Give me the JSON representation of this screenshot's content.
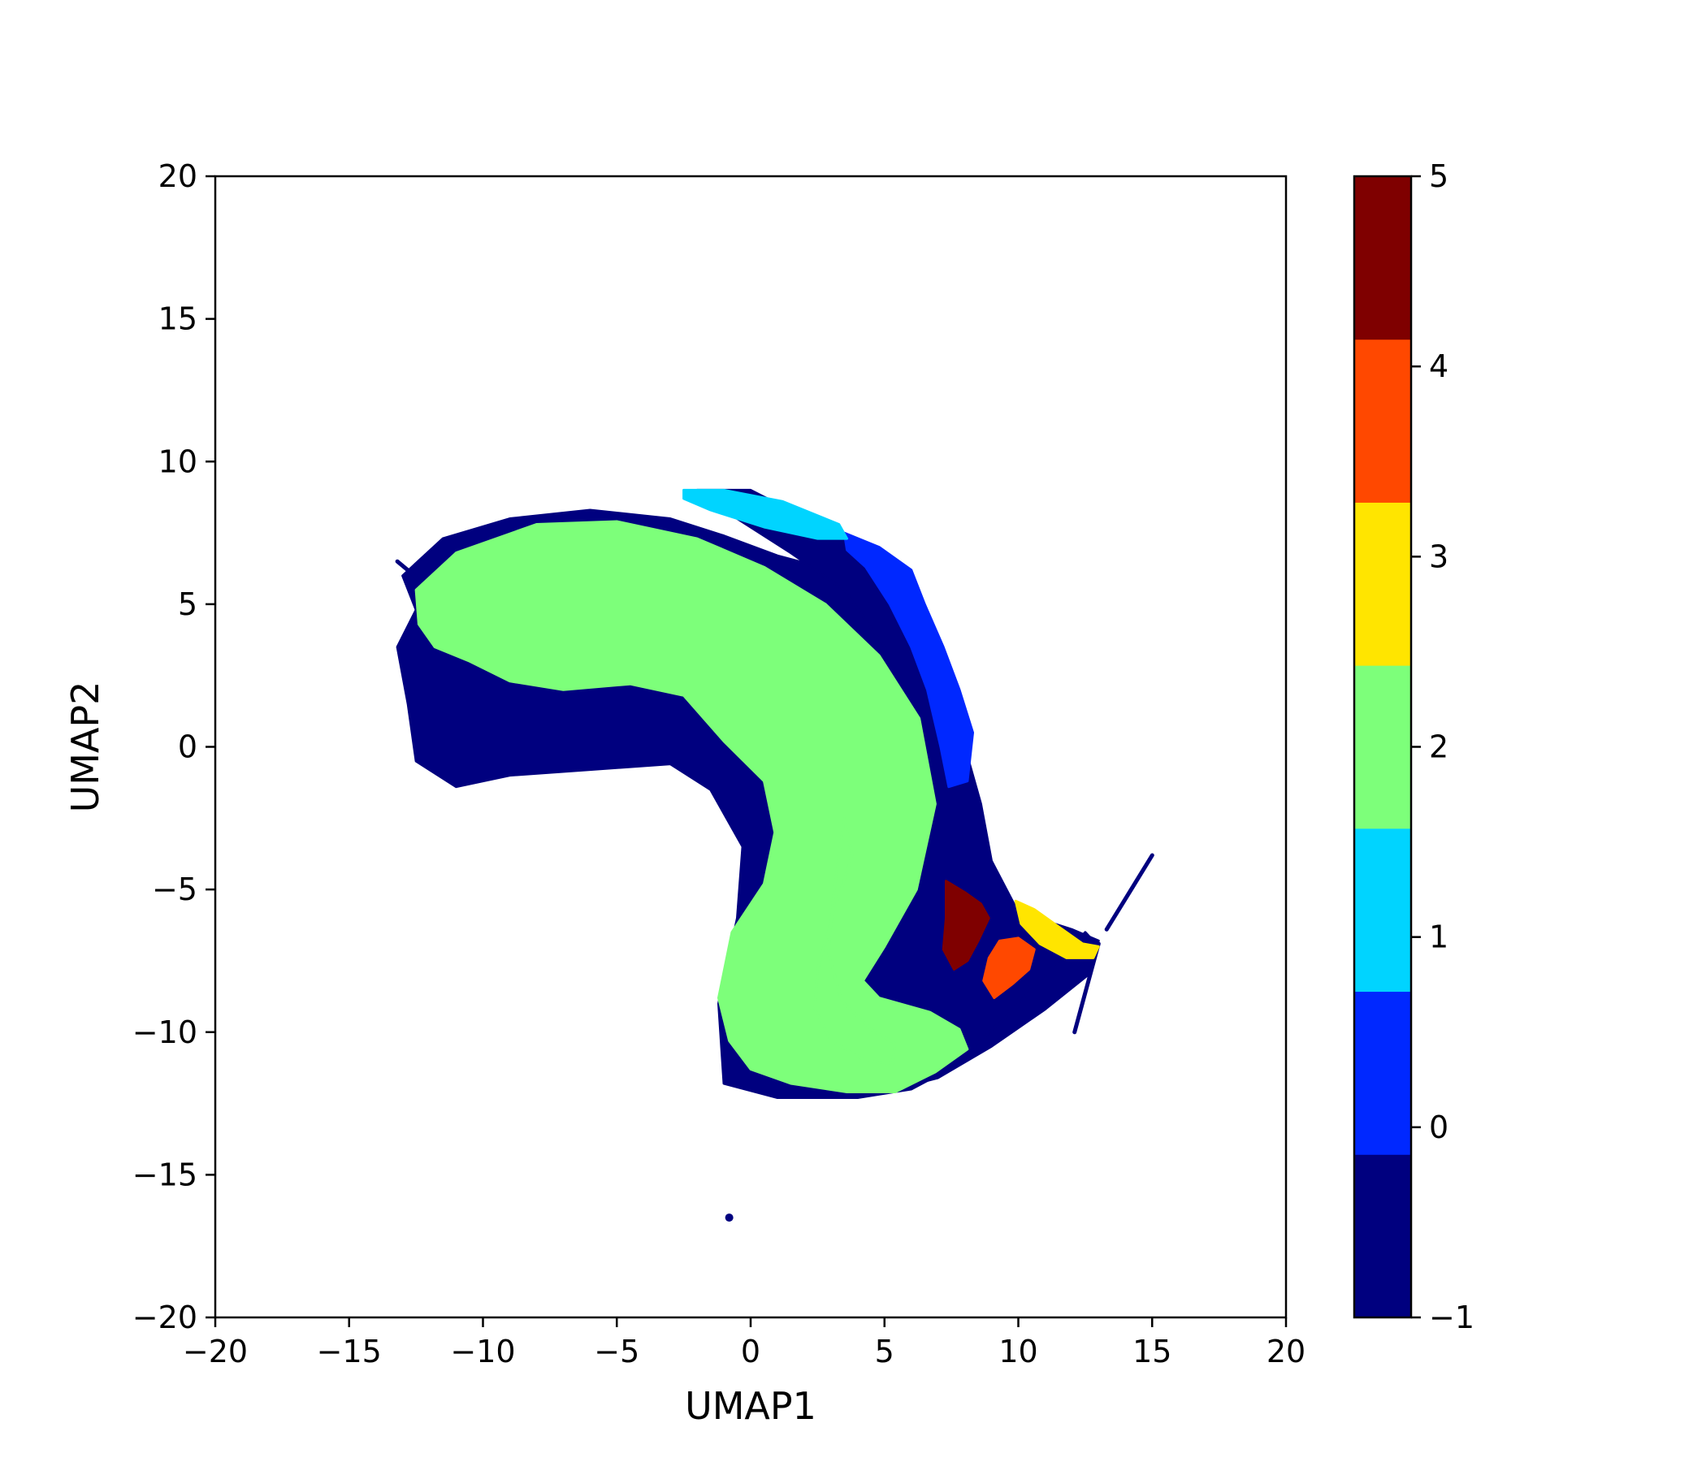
{
  "chart_data": {
    "type": "scatter",
    "title": "",
    "xlabel": "UMAP1",
    "ylabel": "UMAP2",
    "xlim": [
      -20,
      20
    ],
    "ylim": [
      -20,
      20
    ],
    "x_ticks": [
      -20,
      -15,
      -10,
      -5,
      0,
      5,
      10,
      15,
      20
    ],
    "y_ticks": [
      -20,
      -15,
      -10,
      -5,
      0,
      5,
      10,
      15,
      20
    ],
    "x_tick_labels": [
      "−20",
      "−15",
      "−10",
      "−5",
      "0",
      "5",
      "10",
      "15",
      "20"
    ],
    "y_tick_labels": [
      "−20",
      "−15",
      "−10",
      "−5",
      "0",
      "5",
      "10",
      "15",
      "20"
    ],
    "grid": false,
    "colorbar": {
      "colormap": "jet",
      "range": [
        -1,
        5
      ],
      "ticks": [
        -1,
        0,
        1,
        2,
        3,
        4,
        5
      ],
      "tick_labels": [
        "−1",
        "0",
        "1",
        "2",
        "3",
        "4",
        "5"
      ],
      "bins": [
        {
          "cluster": -1,
          "color": "#00007f"
        },
        {
          "cluster": 0,
          "color": "#0028ff"
        },
        {
          "cluster": 1,
          "color": "#00d4ff"
        },
        {
          "cluster": 2,
          "color": "#7dff7a"
        },
        {
          "cluster": 3,
          "color": "#ffe500"
        },
        {
          "cluster": 4,
          "color": "#ff4800"
        },
        {
          "cluster": 5,
          "color": "#7f0000"
        }
      ]
    },
    "series": [
      {
        "cluster": -1,
        "color": "#00007f",
        "regions": [
          {
            "shape": "polygon",
            "points": [
              [
                -13,
                6
              ],
              [
                -11.5,
                7.3
              ],
              [
                -9,
                8
              ],
              [
                -6,
                8.3
              ],
              [
                -3,
                8
              ],
              [
                -1,
                7.4
              ],
              [
                1,
                6.7
              ],
              [
                3,
                6.2
              ],
              [
                5.5,
                5.5
              ],
              [
                7,
                3
              ],
              [
                8,
                0
              ],
              [
                8.6,
                -2
              ],
              [
                9,
                -4
              ],
              [
                10,
                -5.8
              ],
              [
                12,
                -6.4
              ],
              [
                13,
                -6.8
              ],
              [
                12.5,
                -7.8
              ],
              [
                10.5,
                -8.8
              ],
              [
                9,
                -10
              ],
              [
                8,
                -11
              ],
              [
                6,
                -12
              ],
              [
                4,
                -12.3
              ],
              [
                1,
                -12.3
              ],
              [
                -1,
                -11.8
              ],
              [
                -1.2,
                -9
              ],
              [
                -0.5,
                -6
              ],
              [
                -0.3,
                -3.5
              ],
              [
                -1.5,
                -1.5
              ],
              [
                -3,
                -0.6
              ],
              [
                -6,
                -0.8
              ],
              [
                -9,
                -1
              ],
              [
                -11,
                -1.4
              ],
              [
                -12.5,
                -0.5
              ],
              [
                -12.8,
                1.5
              ],
              [
                -13.2,
                3.5
              ],
              [
                -12.5,
                4.8
              ]
            ]
          },
          {
            "shape": "polygon",
            "points": [
              [
                -2,
                9
              ],
              [
                0,
                9
              ],
              [
                2.5,
                7.8
              ],
              [
                5.8,
                6.2
              ],
              [
                6.8,
                4
              ],
              [
                7.8,
                1
              ],
              [
                8,
                -1.2
              ],
              [
                7.2,
                -1.2
              ],
              [
                6,
                1
              ],
              [
                5,
                3.5
              ],
              [
                3.5,
                5.5
              ],
              [
                1.5,
                6.8
              ],
              [
                -0.5,
                8
              ]
            ]
          },
          {
            "shape": "polygon",
            "points": [
              [
                1.5,
                -8.5
              ],
              [
                2.5,
                -9.5
              ],
              [
                4,
                -10.5
              ],
              [
                6,
                -11.2
              ],
              [
                8,
                -10.8
              ],
              [
                9.5,
                -9.5
              ],
              [
                10.5,
                -8.5
              ],
              [
                11.5,
                -7.5
              ],
              [
                12.5,
                -6.5
              ],
              [
                13,
                -7
              ],
              [
                12.6,
                -8
              ],
              [
                11,
                -9.2
              ],
              [
                9,
                -10.5
              ],
              [
                7,
                -11.6
              ],
              [
                5,
                -12.1
              ],
              [
                3,
                -11.8
              ],
              [
                1.3,
                -10.2
              ]
            ]
          },
          {
            "shape": "line",
            "points": [
              [
                -13.2,
                6.5
              ],
              [
                -12.3,
                5.8
              ]
            ]
          },
          {
            "shape": "line",
            "points": [
              [
                13.3,
                -6.4
              ],
              [
                15,
                -3.8
              ]
            ]
          },
          {
            "shape": "line",
            "points": [
              [
                13,
                -6.9
              ],
              [
                12.1,
                -10
              ]
            ]
          },
          {
            "shape": "dot",
            "points": [
              [
                -0.8,
                -16.5
              ]
            ]
          }
        ]
      },
      {
        "cluster": 0,
        "color": "#0028ff",
        "regions": [
          {
            "shape": "polygon",
            "points": [
              [
                3.5,
                7.5
              ],
              [
                4.8,
                7
              ],
              [
                6,
                6.2
              ],
              [
                6.5,
                5
              ],
              [
                7.2,
                3.5
              ],
              [
                7.8,
                2
              ],
              [
                8.3,
                0.5
              ],
              [
                8.1,
                -1.2
              ],
              [
                7.4,
                -1.4
              ],
              [
                7.1,
                0
              ],
              [
                6.6,
                2
              ],
              [
                6,
                3.5
              ],
              [
                5.2,
                5
              ],
              [
                4.3,
                6.3
              ],
              [
                3.6,
                6.9
              ]
            ]
          }
        ]
      },
      {
        "cluster": 1,
        "color": "#00d4ff",
        "regions": [
          {
            "shape": "polygon",
            "points": [
              [
                -2.5,
                9
              ],
              [
                -1,
                9
              ],
              [
                1.2,
                8.6
              ],
              [
                3.3,
                7.8
              ],
              [
                3.6,
                7.3
              ],
              [
                2.5,
                7.3
              ],
              [
                0.5,
                7.7
              ],
              [
                -1.5,
                8.3
              ],
              [
                -2.5,
                8.7
              ]
            ]
          }
        ]
      },
      {
        "cluster": 2,
        "color": "#7dff7a",
        "regions": [
          {
            "shape": "polygon",
            "points": [
              [
                -12.5,
                5.5
              ],
              [
                -11,
                6.8
              ],
              [
                -8,
                7.8
              ],
              [
                -5,
                7.9
              ],
              [
                -2,
                7.3
              ],
              [
                0.5,
                6.3
              ],
              [
                2.8,
                5
              ],
              [
                4.8,
                3.2
              ],
              [
                6.3,
                1
              ],
              [
                6.9,
                -2
              ],
              [
                6.2,
                -5
              ],
              [
                5,
                -7
              ],
              [
                4.2,
                -8.2
              ],
              [
                4.8,
                -8.8
              ],
              [
                6.7,
                -9.3
              ],
              [
                7.8,
                -9.9
              ],
              [
                8.1,
                -10.6
              ],
              [
                6.9,
                -11.4
              ],
              [
                5.4,
                -12.1
              ],
              [
                3.6,
                -12.1
              ],
              [
                1.5,
                -11.8
              ],
              [
                0,
                -11.3
              ],
              [
                -0.8,
                -10.3
              ],
              [
                -1.2,
                -8.8
              ],
              [
                -0.7,
                -6.5
              ],
              [
                0.5,
                -4.8
              ],
              [
                0.9,
                -3
              ],
              [
                0.5,
                -1.2
              ],
              [
                -1,
                0.2
              ],
              [
                -2.5,
                1.8
              ],
              [
                -4.5,
                2.2
              ],
              [
                -7,
                2
              ],
              [
                -9,
                2.3
              ],
              [
                -10.5,
                3
              ],
              [
                -11.8,
                3.5
              ],
              [
                -12.4,
                4.3
              ]
            ]
          },
          {
            "shape": "polygon",
            "points": [
              [
                3.5,
                -2.5
              ],
              [
                3.8,
                -3.8
              ],
              [
                3.1,
                -5.8
              ],
              [
                2.5,
                -7.8
              ],
              [
                2.4,
                -9.2
              ],
              [
                3,
                -10.3
              ],
              [
                4.3,
                -11
              ],
              [
                5.3,
                -11.1
              ],
              [
                5.4,
                -10.4
              ],
              [
                4.5,
                -9.9
              ],
              [
                3.4,
                -8.9
              ],
              [
                2.9,
                -7.2
              ],
              [
                3.1,
                -5.2
              ]
            ]
          }
        ]
      },
      {
        "cluster": 3,
        "color": "#ffe500",
        "regions": [
          {
            "shape": "polygon",
            "points": [
              [
                9.9,
                -5.4
              ],
              [
                10.6,
                -5.7
              ],
              [
                11.5,
                -6.3
              ],
              [
                12.4,
                -6.9
              ],
              [
                13,
                -7
              ],
              [
                12.8,
                -7.4
              ],
              [
                11.8,
                -7.4
              ],
              [
                10.8,
                -6.9
              ],
              [
                10.1,
                -6.2
              ]
            ]
          }
        ]
      },
      {
        "cluster": 4,
        "color": "#ff4800",
        "regions": [
          {
            "shape": "polygon",
            "points": [
              [
                9.3,
                -6.8
              ],
              [
                10,
                -6.7
              ],
              [
                10.6,
                -7.1
              ],
              [
                10.4,
                -7.8
              ],
              [
                9.8,
                -8.3
              ],
              [
                9.1,
                -8.8
              ],
              [
                8.7,
                -8.2
              ],
              [
                8.9,
                -7.4
              ]
            ]
          }
        ]
      },
      {
        "cluster": 5,
        "color": "#7f0000",
        "regions": [
          {
            "shape": "polygon",
            "points": [
              [
                7.3,
                -4.7
              ],
              [
                8,
                -5.1
              ],
              [
                8.6,
                -5.5
              ],
              [
                8.9,
                -6
              ],
              [
                8.5,
                -6.8
              ],
              [
                8.1,
                -7.5
              ],
              [
                7.6,
                -7.8
              ],
              [
                7.2,
                -7.1
              ],
              [
                7.3,
                -6
              ]
            ]
          }
        ]
      }
    ]
  }
}
